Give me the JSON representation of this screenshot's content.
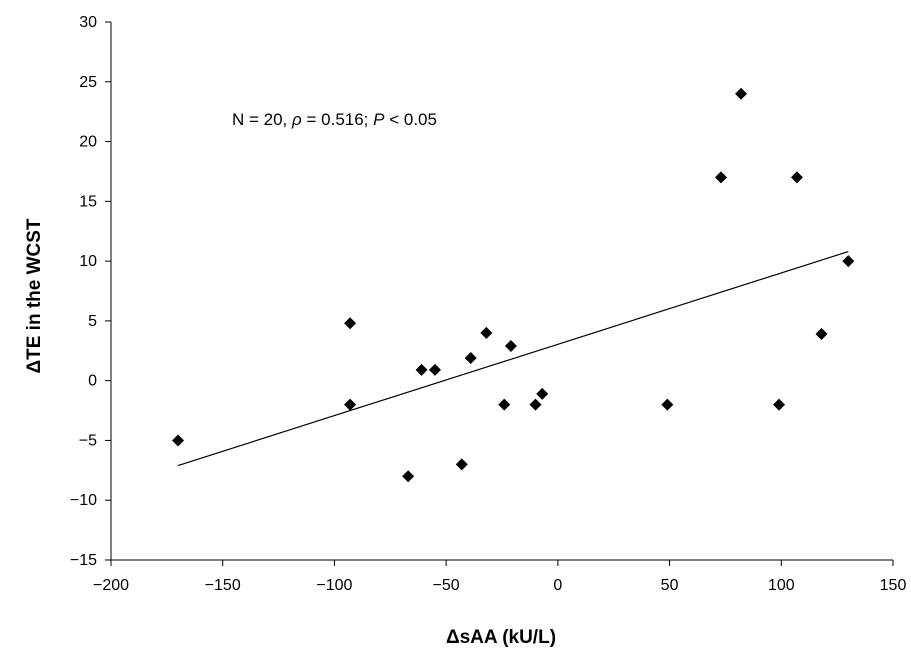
{
  "chart_data": {
    "type": "scatter",
    "xlabel": "ΔsAA (kU/L)",
    "ylabel": "ΔTE in the WCST",
    "xlim": [
      -200,
      150
    ],
    "ylim": [
      -15,
      30
    ],
    "xticks": [
      -200,
      -150,
      -100,
      -50,
      0,
      50,
      100,
      150
    ],
    "yticks": [
      -15,
      -10,
      -5,
      0,
      5,
      10,
      15,
      20,
      25,
      30
    ],
    "xtick_labels": [
      "−200",
      "−150",
      "−100",
      "−50",
      "0",
      "50",
      "100",
      "150"
    ],
    "ytick_labels": [
      "−15",
      "−10",
      "−5",
      "0",
      "5",
      "10",
      "15",
      "20",
      "25",
      "30"
    ],
    "grid": false,
    "marker": "diamond",
    "points": [
      {
        "x": -170,
        "y": -5
      },
      {
        "x": -93,
        "y": 4.8
      },
      {
        "x": -93,
        "y": -2
      },
      {
        "x": -67,
        "y": -8
      },
      {
        "x": -61,
        "y": 0.9
      },
      {
        "x": -55,
        "y": 0.9
      },
      {
        "x": -43,
        "y": -7
      },
      {
        "x": -39,
        "y": 1.9
      },
      {
        "x": -32,
        "y": 4
      },
      {
        "x": -24,
        "y": -2
      },
      {
        "x": -21,
        "y": 2.9
      },
      {
        "x": -10,
        "y": -2
      },
      {
        "x": -7,
        "y": -1.1
      },
      {
        "x": 49,
        "y": -2
      },
      {
        "x": 73,
        "y": 17
      },
      {
        "x": 82,
        "y": 24
      },
      {
        "x": 99,
        "y": -2
      },
      {
        "x": 107,
        "y": 17
      },
      {
        "x": 118,
        "y": 3.9
      },
      {
        "x": 130,
        "y": 10
      }
    ],
    "trendline": {
      "x": [
        -170,
        130
      ],
      "y": [
        -7.1,
        10.8
      ]
    },
    "annotation": {
      "n_part": "N = 20, ",
      "rho_symbol": "ρ",
      "rho_part": " = 0.516; ",
      "p_symbol": "P",
      "p_part": " < 0.05"
    }
  }
}
